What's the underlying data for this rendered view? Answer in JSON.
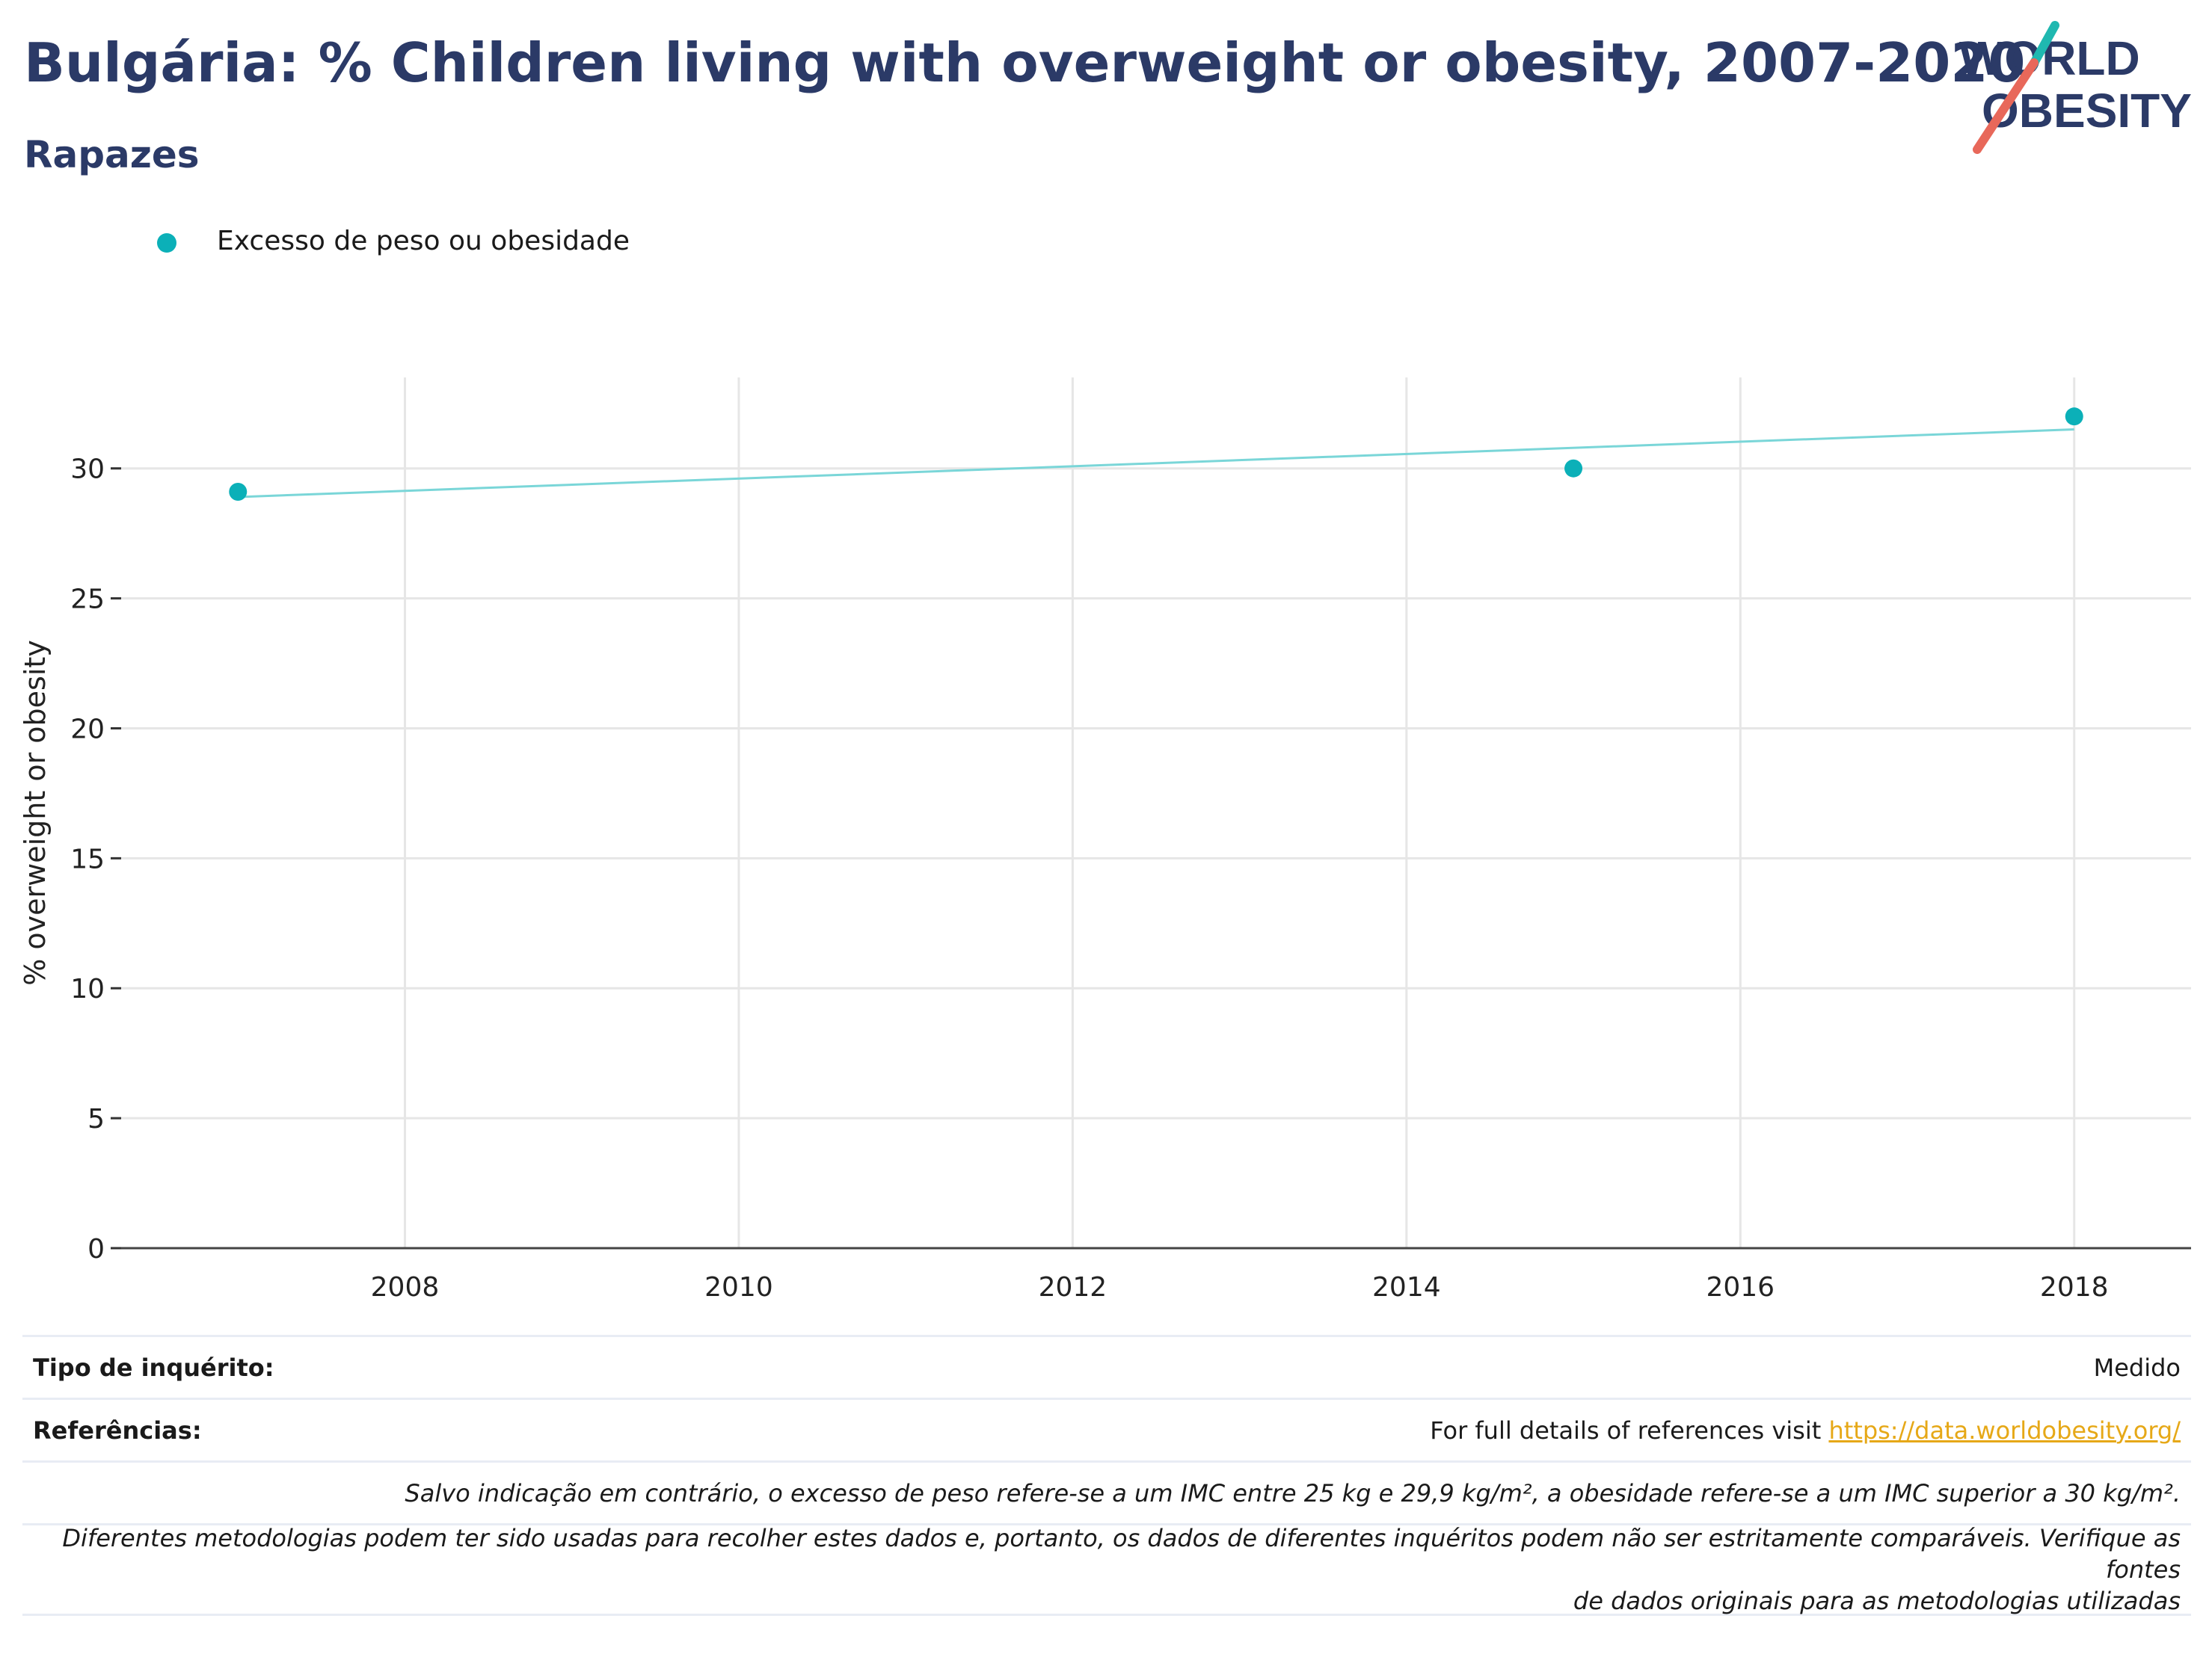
{
  "header": {
    "title": "Bulgária: % Children living with overweight or obesity, 2007-2020",
    "subtitle": "Rapazes"
  },
  "logo": {
    "line1": "WORLD",
    "line2": "OBESITY",
    "icon": "world-obesity-logo"
  },
  "colors": {
    "title": "#2b3a67",
    "series": "#0bb0b8",
    "trend": "#7ad6d8",
    "link": "#e6a817",
    "grid": "#e6e6e6"
  },
  "chart_data": {
    "type": "scatter",
    "title": "Bulgária: % Children living with overweight or obesity, 2007-2020",
    "subtitle": "Rapazes",
    "xlabel": "",
    "ylabel": "% overweight or obesity",
    "xlim": [
      2006.3,
      2018.7
    ],
    "ylim": [
      0,
      33.5
    ],
    "xticks": [
      2008,
      2010,
      2012,
      2014,
      2016,
      2018
    ],
    "yticks": [
      0,
      5,
      10,
      15,
      20,
      25,
      30
    ],
    "grid": true,
    "legend_position": "top-left",
    "series": [
      {
        "name": "Excesso de peso ou obesidade",
        "x": [
          2007,
          2015,
          2018
        ],
        "y": [
          29.1,
          30.0,
          32.0
        ]
      }
    ],
    "trendline": {
      "x": [
        2007,
        2018
      ],
      "y": [
        28.9,
        31.5
      ]
    }
  },
  "footer": {
    "survey_label": "Tipo de inquérito:",
    "survey_value": "Medido",
    "references_label": "Referências:",
    "references_text": "For full details of references visit ",
    "references_link": "https://data.worldobesity.org/",
    "note_bmi": "Salvo indicação em contrário, o excesso de peso refere-se a um IMC entre 25 kg e 29,9 kg/m², a obesidade refere-se a um IMC superior a 30 kg/m².",
    "note_methods_1": "Diferentes metodologias podem ter sido usadas para recolher estes dados e, portanto, os dados de diferentes inquéritos podem não ser estritamente comparáveis. Verifique as fontes",
    "note_methods_2": "de dados originais para as metodologias utilizadas"
  }
}
